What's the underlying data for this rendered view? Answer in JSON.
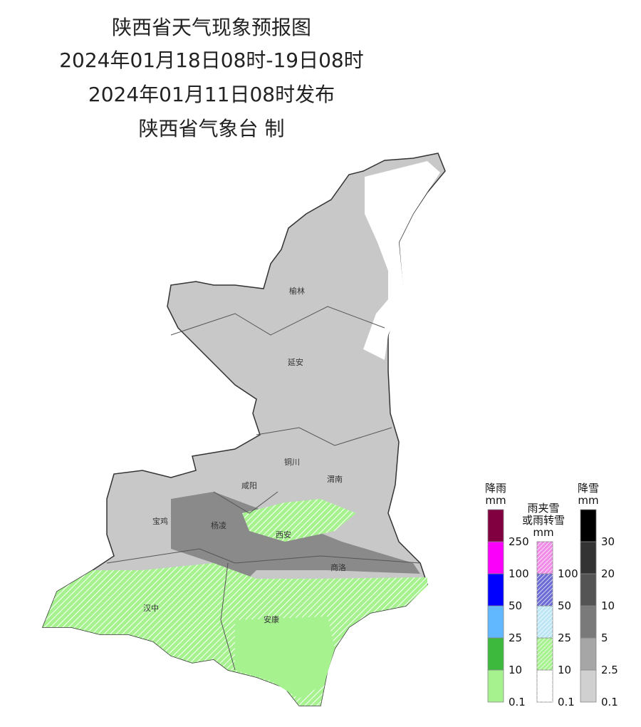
{
  "header": {
    "title": "陕西省天气现象预报图",
    "period": "2024年01月18日08时-19日08时",
    "issued": "2024年01月11日08时发布",
    "author": "陕西省气象台 制"
  },
  "cities": [
    "榆林",
    "延安",
    "铜川",
    "咸阳",
    "渭南",
    "宝鸡",
    "杨凌",
    "西安",
    "商洛",
    "汉中",
    "安康"
  ],
  "legends": [
    {
      "title": [
        "降雨",
        "mm"
      ],
      "ticks": [
        "0.1",
        "10",
        "25",
        "50",
        "100",
        "250"
      ],
      "colors": [
        "#a6f28f",
        "#3dba3d",
        "#61b8ff",
        "#0000ff",
        "#fa00fa",
        "#800040"
      ],
      "hatch": false
    },
    {
      "title": [
        "雨夹雪",
        "或雨转雪",
        "mm"
      ],
      "ticks": [
        "0.1",
        "10",
        "25",
        "50",
        "100"
      ],
      "colors": [
        "#ffffff",
        "#a6f28f",
        "#bde6f5",
        "#6b6bd6",
        "#f08ce8"
      ],
      "hatch": true
    },
    {
      "title": [
        "降雪",
        "mm"
      ],
      "ticks": [
        "0.1",
        "2.5",
        "5",
        "10",
        "20",
        "30"
      ],
      "colors": [
        "#d0d0d0",
        "#a6a6a6",
        "#7a7a7a",
        "#545454",
        "#333333",
        "#000000"
      ],
      "hatch": false
    }
  ]
}
